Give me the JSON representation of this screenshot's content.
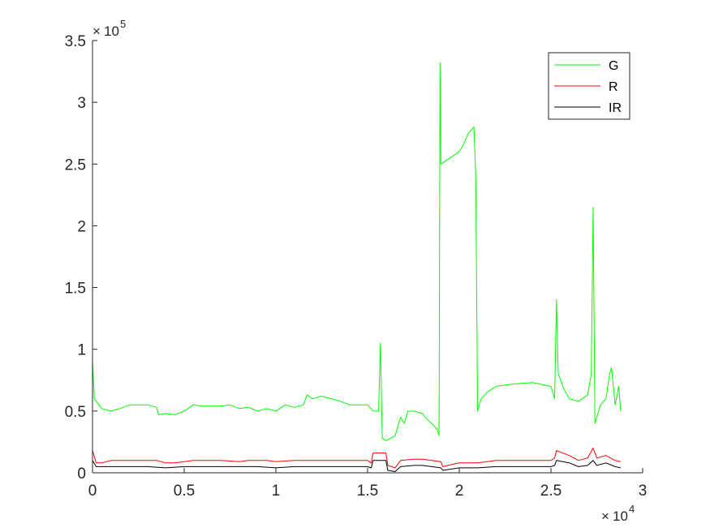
{
  "chart_data": {
    "type": "line",
    "title": "",
    "xlabel": "",
    "ylabel": "",
    "x_exponent_label": "10",
    "x_exponent_power": "4",
    "y_exponent_label": "10",
    "y_exponent_power": "5",
    "xlim": [
      0,
      3
    ],
    "ylim": [
      0,
      3.5
    ],
    "x_ticks": [
      0,
      0.5,
      1,
      1.5,
      2,
      2.5,
      3
    ],
    "x_tick_labels": [
      "0",
      "0.5",
      "1",
      "1.5",
      "2",
      "2.5",
      "3"
    ],
    "y_ticks": [
      0,
      0.5,
      1,
      1.5,
      2,
      2.5,
      3,
      3.5
    ],
    "y_tick_labels": [
      "0",
      "0.5",
      "1",
      "1.5",
      "2",
      "2.5",
      "3",
      "3.5"
    ],
    "grid": false,
    "legend_position": "top-right",
    "series": [
      {
        "name": "G",
        "color": "#00ff00",
        "points": [
          [
            0,
            0.9
          ],
          [
            0.01,
            0.6
          ],
          [
            0.05,
            0.52
          ],
          [
            0.1,
            0.5
          ],
          [
            0.15,
            0.52
          ],
          [
            0.2,
            0.55
          ],
          [
            0.3,
            0.55
          ],
          [
            0.35,
            0.53
          ],
          [
            0.36,
            0.47
          ],
          [
            0.4,
            0.48
          ],
          [
            0.45,
            0.47
          ],
          [
            0.5,
            0.5
          ],
          [
            0.55,
            0.55
          ],
          [
            0.6,
            0.54
          ],
          [
            0.7,
            0.54
          ],
          [
            0.75,
            0.55
          ],
          [
            0.8,
            0.52
          ],
          [
            0.85,
            0.53
          ],
          [
            0.9,
            0.5
          ],
          [
            0.95,
            0.52
          ],
          [
            1.0,
            0.5
          ],
          [
            1.05,
            0.55
          ],
          [
            1.1,
            0.53
          ],
          [
            1.15,
            0.55
          ],
          [
            1.17,
            0.63
          ],
          [
            1.2,
            0.6
          ],
          [
            1.25,
            0.62
          ],
          [
            1.3,
            0.6
          ],
          [
            1.35,
            0.58
          ],
          [
            1.4,
            0.55
          ],
          [
            1.45,
            0.55
          ],
          [
            1.5,
            0.55
          ],
          [
            1.53,
            0.5
          ],
          [
            1.56,
            0.5
          ],
          [
            1.57,
            1.05
          ],
          [
            1.58,
            0.28
          ],
          [
            1.6,
            0.26
          ],
          [
            1.65,
            0.3
          ],
          [
            1.68,
            0.45
          ],
          [
            1.7,
            0.4
          ],
          [
            1.72,
            0.5
          ],
          [
            1.75,
            0.5
          ],
          [
            1.8,
            0.48
          ],
          [
            1.82,
            0.44
          ],
          [
            1.85,
            0.4
          ],
          [
            1.88,
            0.35
          ],
          [
            1.89,
            0.3
          ],
          [
            1.895,
            3.32
          ],
          [
            1.9,
            2.5
          ],
          [
            1.95,
            2.55
          ],
          [
            2.0,
            2.6
          ],
          [
            2.02,
            2.65
          ],
          [
            2.05,
            2.75
          ],
          [
            2.08,
            2.8
          ],
          [
            2.09,
            2.4
          ],
          [
            2.1,
            0.5
          ],
          [
            2.12,
            0.6
          ],
          [
            2.15,
            0.65
          ],
          [
            2.2,
            0.7
          ],
          [
            2.3,
            0.72
          ],
          [
            2.4,
            0.73
          ],
          [
            2.5,
            0.7
          ],
          [
            2.52,
            0.6
          ],
          [
            2.53,
            1.4
          ],
          [
            2.54,
            0.8
          ],
          [
            2.57,
            0.68
          ],
          [
            2.6,
            0.6
          ],
          [
            2.65,
            0.58
          ],
          [
            2.7,
            0.63
          ],
          [
            2.72,
            0.8
          ],
          [
            2.73,
            2.15
          ],
          [
            2.74,
            0.4
          ],
          [
            2.77,
            0.55
          ],
          [
            2.8,
            0.6
          ],
          [
            2.82,
            0.8
          ],
          [
            2.83,
            0.85
          ],
          [
            2.85,
            0.55
          ],
          [
            2.87,
            0.7
          ],
          [
            2.88,
            0.5
          ]
        ]
      },
      {
        "name": "R",
        "color": "#ff0000",
        "points": [
          [
            0,
            0.18
          ],
          [
            0.02,
            0.08
          ],
          [
            0.05,
            0.08
          ],
          [
            0.1,
            0.1
          ],
          [
            0.2,
            0.1
          ],
          [
            0.3,
            0.1
          ],
          [
            0.35,
            0.1
          ],
          [
            0.4,
            0.08
          ],
          [
            0.45,
            0.08
          ],
          [
            0.5,
            0.09
          ],
          [
            0.55,
            0.1
          ],
          [
            0.7,
            0.1
          ],
          [
            0.8,
            0.09
          ],
          [
            0.85,
            0.1
          ],
          [
            0.95,
            0.1
          ],
          [
            1.0,
            0.09
          ],
          [
            1.1,
            0.1
          ],
          [
            1.2,
            0.1
          ],
          [
            1.3,
            0.1
          ],
          [
            1.4,
            0.1
          ],
          [
            1.5,
            0.1
          ],
          [
            1.52,
            0.08
          ],
          [
            1.53,
            0.16
          ],
          [
            1.6,
            0.16
          ],
          [
            1.61,
            0.06
          ],
          [
            1.65,
            0.04
          ],
          [
            1.68,
            0.1
          ],
          [
            1.75,
            0.11
          ],
          [
            1.8,
            0.11
          ],
          [
            1.85,
            0.1
          ],
          [
            1.9,
            0.09
          ],
          [
            1.91,
            0.05
          ],
          [
            2.0,
            0.08
          ],
          [
            2.1,
            0.08
          ],
          [
            2.2,
            0.1
          ],
          [
            2.3,
            0.1
          ],
          [
            2.4,
            0.1
          ],
          [
            2.5,
            0.1
          ],
          [
            2.52,
            0.12
          ],
          [
            2.53,
            0.18
          ],
          [
            2.6,
            0.14
          ],
          [
            2.65,
            0.1
          ],
          [
            2.7,
            0.12
          ],
          [
            2.73,
            0.2
          ],
          [
            2.75,
            0.12
          ],
          [
            2.8,
            0.14
          ],
          [
            2.85,
            0.1
          ],
          [
            2.88,
            0.09
          ]
        ]
      },
      {
        "name": "IR",
        "color": "#000000",
        "points": [
          [
            0,
            0.1
          ],
          [
            0.02,
            0.05
          ],
          [
            0.1,
            0.05
          ],
          [
            0.2,
            0.05
          ],
          [
            0.3,
            0.05
          ],
          [
            0.4,
            0.04
          ],
          [
            0.5,
            0.05
          ],
          [
            0.6,
            0.05
          ],
          [
            0.7,
            0.05
          ],
          [
            0.8,
            0.05
          ],
          [
            0.9,
            0.05
          ],
          [
            1.0,
            0.04
          ],
          [
            1.1,
            0.05
          ],
          [
            1.2,
            0.05
          ],
          [
            1.3,
            0.05
          ],
          [
            1.4,
            0.05
          ],
          [
            1.5,
            0.05
          ],
          [
            1.52,
            0.04
          ],
          [
            1.53,
            0.1
          ],
          [
            1.6,
            0.1
          ],
          [
            1.61,
            0.02
          ],
          [
            1.65,
            0.01
          ],
          [
            1.68,
            0.05
          ],
          [
            1.75,
            0.06
          ],
          [
            1.8,
            0.06
          ],
          [
            1.85,
            0.05
          ],
          [
            1.9,
            0.04
          ],
          [
            1.91,
            0.02
          ],
          [
            2.0,
            0.04
          ],
          [
            2.1,
            0.04
          ],
          [
            2.2,
            0.05
          ],
          [
            2.3,
            0.05
          ],
          [
            2.4,
            0.05
          ],
          [
            2.5,
            0.05
          ],
          [
            2.52,
            0.06
          ],
          [
            2.53,
            0.1
          ],
          [
            2.6,
            0.08
          ],
          [
            2.65,
            0.05
          ],
          [
            2.7,
            0.06
          ],
          [
            2.73,
            0.1
          ],
          [
            2.75,
            0.06
          ],
          [
            2.8,
            0.08
          ],
          [
            2.85,
            0.05
          ],
          [
            2.88,
            0.04
          ]
        ]
      }
    ]
  }
}
